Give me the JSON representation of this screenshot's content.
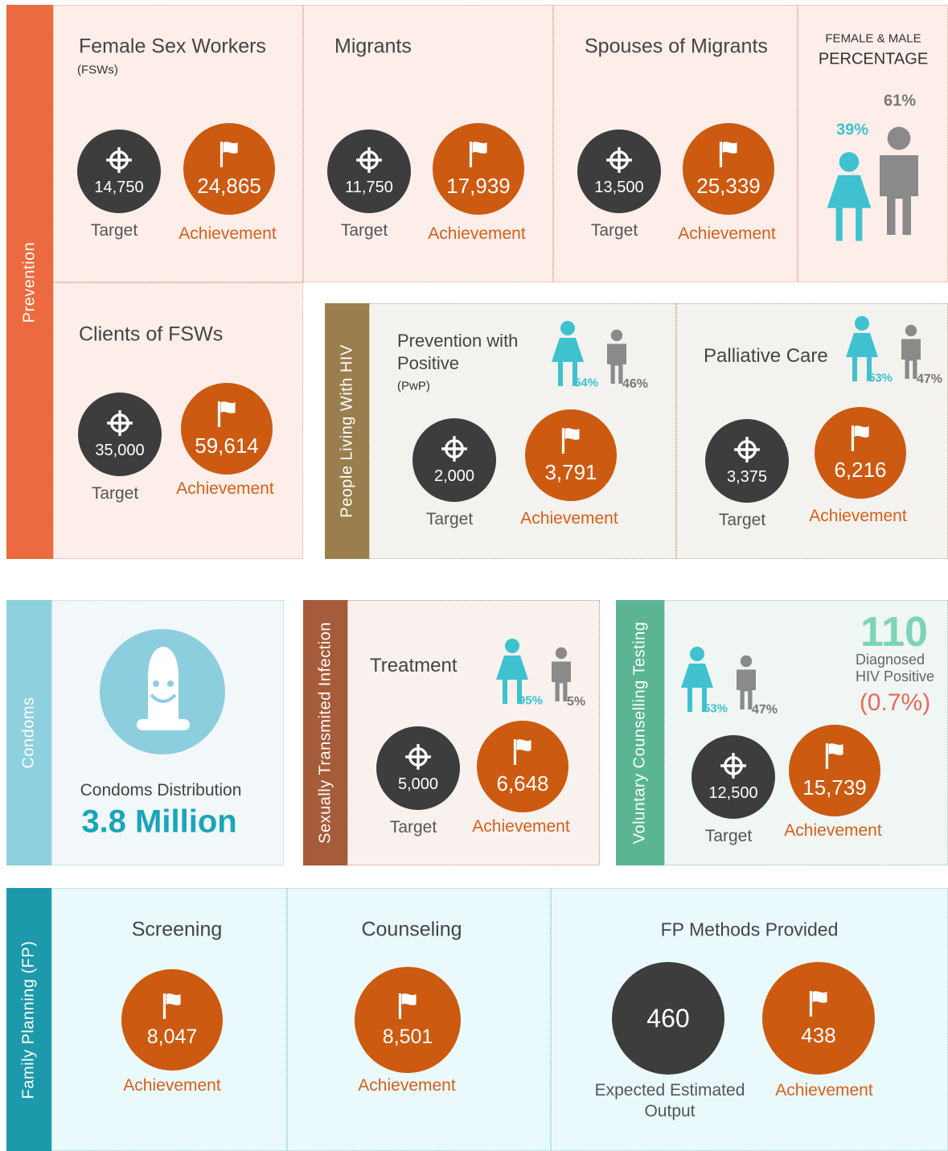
{
  "sections": [
    {
      "label": "Prevention",
      "cards": [
        {
          "title": "Female Sex Workers",
          "subtitle": "(FSWs)",
          "target": "14,750",
          "target_label": "Target",
          "achievement": "24,865",
          "achievement_label": "Achievement"
        },
        {
          "title": "Migrants",
          "target": "11,750",
          "target_label": "Target",
          "achievement": "17,939",
          "achievement_label": "Achievement"
        },
        {
          "title": "Spouses of Migrants",
          "target": "13,500",
          "target_label": "Target",
          "achievement": "25,339",
          "achievement_label": "Achievement"
        },
        {
          "title": "Clients of FSWs",
          "target": "35,000",
          "target_label": "Target",
          "achievement": "59,614",
          "achievement_label": "Achievement"
        }
      ],
      "gender": {
        "title_line1": "FEMALE & MALE",
        "title_line2": "PERCENTAGE",
        "female": "39%",
        "male": "61%"
      }
    },
    {
      "label": "People Living With HIV",
      "cards": [
        {
          "title": "Prevention with Positive",
          "subtitle": "(PwP)",
          "female": "54%",
          "male": "46%",
          "target": "2,000",
          "target_label": "Target",
          "achievement": "3,791",
          "achievement_label": "Achievement"
        },
        {
          "title": "Palliative Care",
          "female": "53%",
          "male": "47%",
          "target": "3,375",
          "target_label": "Target",
          "achievement": "6,216",
          "achievement_label": "Achievement"
        }
      ]
    },
    {
      "label": "Condoms",
      "title": "Condoms Distribution",
      "value": "3.8 Million"
    },
    {
      "label": "Sexually Transmited Infection",
      "cards": [
        {
          "title": "Treatment",
          "female": "95%",
          "male": "5%",
          "target": "5,000",
          "target_label": "Target",
          "achievement": "6,648",
          "achievement_label": "Achievement"
        }
      ]
    },
    {
      "label": "Voluntary Counselling  Testing",
      "cards": [
        {
          "female": "53%",
          "male": "47%",
          "target": "12,500",
          "target_label": "Target",
          "achievement": "15,739",
          "achievement_label": "Achievement"
        }
      ],
      "diagnosed": {
        "count": "110",
        "label": "Diagnosed HIV Positive",
        "percentage": "(0.7%)"
      }
    },
    {
      "label": "Family Planning (FP)",
      "cards": [
        {
          "title": "Screening",
          "achievement": "8,047",
          "achievement_label": "Achievement"
        },
        {
          "title": "Counseling",
          "achievement": "8,501",
          "achievement_label": "Achievement"
        },
        {
          "title": "FP Methods Provided",
          "expected": "460",
          "expected_label": "Expected Estimated Output",
          "achievement": "438",
          "achievement_label": "Achievement"
        }
      ]
    }
  ]
}
